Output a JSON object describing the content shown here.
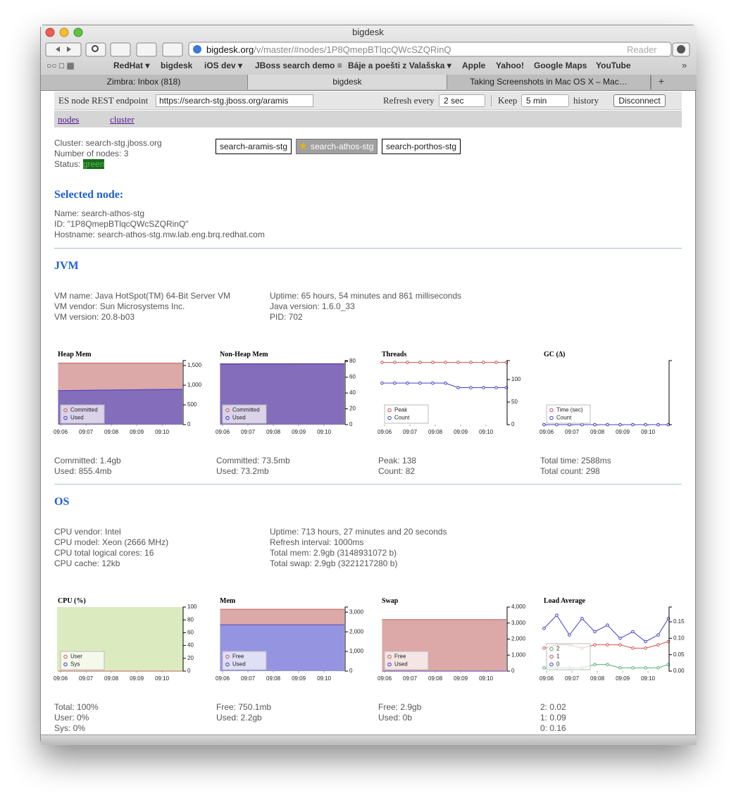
{
  "window": {
    "title": "bigdesk",
    "url_host": "bigdesk.org",
    "url_path": "/v/master/#nodes/1P8QmepBTlqcQWcSZQRinQ",
    "reader": "Reader"
  },
  "bookmarks": [
    "RedHat ▾",
    "bigdesk",
    "iOS dev ▾",
    "JBoss search demo ≡",
    "Báje a poešti z Valašska ▾",
    "Apple",
    "Yahoo!",
    "Google Maps",
    "YouTube"
  ],
  "tabs": [
    "Zimbra: Inbox (818)",
    "bigdesk",
    "Taking Screenshots in Mac OS X – Mac…"
  ],
  "header": {
    "endpoint_label": "ES node REST endpoint",
    "endpoint": "https://search-stg.jboss.org/aramis",
    "refresh_label": "Refresh every",
    "refresh": "2 sec",
    "keep_label": "Keep",
    "keep": "5 min",
    "history_label": "history",
    "disconnect": "Disconnect"
  },
  "nav": [
    "nodes",
    "cluster"
  ],
  "cluster": {
    "name": "Cluster: search-stg.jboss.org",
    "nodes_count": "Number of nodes: 3",
    "status_label": "Status:",
    "status": "green"
  },
  "nodes": [
    "search-aramis-stg",
    "search-athos-stg",
    "search-porthos-stg"
  ],
  "selected_node": {
    "heading": "Selected node:",
    "lines": [
      "Name: search-athos-stg",
      "ID: \"1P8QmepBTlqcQWcSZQRinQ\"",
      "Hostname: search-athos-stg.mw.lab.eng.brq.redhat.com"
    ]
  },
  "jvm": {
    "heading": "JVM",
    "left": [
      "VM name: Java HotSpot(TM) 64-Bit Server VM",
      "VM vendor: Sun Microsystems Inc.",
      "VM version: 20.8-b03"
    ],
    "right": [
      "Uptime: 65 hours, 54 minutes and 861 milliseconds",
      "Java version: 1.6.0_33",
      "PID: 702"
    ]
  },
  "jvm_charts": [
    {
      "type": "area",
      "title": "Heap Mem",
      "stacked": false,
      "x": [
        545.9,
        546.4,
        546.9,
        547.4,
        547.9,
        548.4,
        548.9,
        549.4,
        549.9,
        550.4,
        550.8
      ],
      "xlim": [
        545.86,
        550.83
      ],
      "xticks": [
        {
          "value": 546,
          "label": "09:06"
        },
        {
          "value": 547,
          "label": "09:07"
        },
        {
          "value": 548,
          "label": "09:08"
        },
        {
          "value": 549,
          "label": "09:09"
        },
        {
          "value": 550,
          "label": "09:10"
        }
      ],
      "ylim": [
        0,
        1625
      ],
      "yticks": [
        0,
        500,
        {
          "value": 1000,
          "label": "1,000"
        },
        {
          "value": 1500,
          "label": "1,500"
        }
      ],
      "series": [
        {
          "name": "Committed",
          "color": "#c06060",
          "values": [
            1560,
            1560,
            1560,
            1560,
            1560,
            1560,
            1560,
            1560,
            1560,
            1560,
            1560
          ]
        },
        {
          "name": "Used",
          "color": "#3c3cc8",
          "values": [
            862,
            866,
            870,
            874,
            878,
            882,
            885,
            888,
            891,
            894,
            897
          ]
        }
      ],
      "stats": [
        "Committed: 1.4gb",
        "Used: 855.4mb"
      ]
    },
    {
      "type": "area",
      "title": "Non-Heap Mem",
      "stacked": false,
      "x": [
        545.9,
        546.4,
        546.9,
        547.4,
        547.9,
        548.4,
        548.9,
        549.4,
        549.9,
        550.4,
        550.8
      ],
      "xlim": [
        545.86,
        550.83
      ],
      "xticks": [
        {
          "value": 546,
          "label": "09:06"
        },
        {
          "value": 547,
          "label": "09:07"
        },
        {
          "value": 548,
          "label": "09:08"
        },
        {
          "value": 549,
          "label": "09:09"
        },
        {
          "value": 550,
          "label": "09:10"
        }
      ],
      "ylim": [
        0,
        81
      ],
      "yticks": [
        0,
        20,
        40,
        60,
        80
      ],
      "series": [
        {
          "name": "Committed",
          "color": "#c06060",
          "values": [
            77.1,
            77.1,
            77.1,
            77.1,
            77.1,
            77.1,
            77.1,
            77.1,
            77.1,
            77.1,
            77.1
          ]
        },
        {
          "name": "Used",
          "color": "#3c3cc8",
          "values": [
            76.6,
            76.6,
            76.7,
            76.7,
            76.7,
            76.7,
            76.8,
            76.8,
            76.8,
            76.8,
            76.8
          ]
        }
      ],
      "stats": [
        "Committed: 73.5mb",
        "Used: 73.2mb"
      ]
    },
    {
      "type": "line",
      "title": "Threads",
      "x": [
        545.9,
        546.4,
        546.9,
        547.4,
        547.9,
        548.4,
        548.9,
        549.4,
        549.9,
        550.4,
        550.8
      ],
      "xlim": [
        545.86,
        550.83
      ],
      "xticks": [
        {
          "value": 546,
          "label": "09:06"
        },
        {
          "value": 547,
          "label": "09:07"
        },
        {
          "value": 548,
          "label": "09:08"
        },
        {
          "value": 549,
          "label": "09:09"
        },
        {
          "value": 550,
          "label": "09:10"
        }
      ],
      "ylim": [
        0,
        142
      ],
      "yticks": [
        0,
        50,
        100
      ],
      "series": [
        {
          "name": "Peak",
          "color": "#d05050",
          "values": [
            138,
            138,
            138,
            138,
            138,
            138,
            138,
            138,
            138,
            138,
            138
          ]
        },
        {
          "name": "Count",
          "color": "#4040c0",
          "values": [
            92,
            92,
            92,
            92,
            92,
            92,
            82,
            82,
            82,
            82,
            82
          ]
        }
      ],
      "stats": [
        "Peak: 138",
        "Count: 82"
      ]
    },
    {
      "type": "line",
      "title": "GC (Δ)",
      "x": [
        545.9,
        546.4,
        546.9,
        547.4,
        547.9,
        548.4,
        548.9,
        549.4,
        549.9,
        550.4,
        550.8
      ],
      "xlim": [
        545.86,
        550.83
      ],
      "xticks": [
        {
          "value": 546,
          "label": "09:06"
        },
        {
          "value": 547,
          "label": "09:07"
        },
        {
          "value": 548,
          "label": "09:08"
        },
        {
          "value": 549,
          "label": "09:09"
        },
        {
          "value": 550,
          "label": "09:10"
        }
      ],
      "ylim": [
        0,
        1
      ],
      "yticks": [],
      "series": [
        {
          "name": "Time (sec)",
          "color": "#d05050",
          "values": [
            0,
            0,
            0,
            0,
            0,
            0,
            0,
            0,
            0,
            0,
            0
          ]
        },
        {
          "name": "Count",
          "color": "#4040c0",
          "values": [
            0,
            0,
            0,
            0,
            0,
            0,
            0,
            0,
            0,
            0,
            0
          ]
        }
      ],
      "stats": [
        "Total time: 2588ms",
        "Total count: 298"
      ]
    }
  ],
  "os": {
    "heading": "OS",
    "left": [
      "CPU vendor: Intel",
      "CPU model: Xeon (2666 MHz)",
      "CPU total logical cores: 16",
      "CPU cache: 12kb"
    ],
    "right": [
      "Uptime: 713 hours, 27 minutes and 20 seconds",
      "Refresh interval: 1000ms",
      "Total mem: 2.9gb (3148931072 b)",
      "Total swap: 2.9gb (3221217280 b)"
    ]
  },
  "os_charts": [
    {
      "type": "area",
      "title": "CPU (%)",
      "stacked": true,
      "plot_color": "#dcebbf",
      "x": [
        545.9,
        546.4,
        546.9,
        547.4,
        547.9,
        548.4,
        548.9,
        549.4,
        549.9,
        550.4,
        550.8
      ],
      "xlim": [
        545.86,
        550.83
      ],
      "xticks": [
        {
          "value": 546,
          "label": "09:06"
        },
        {
          "value": 547,
          "label": "09:07"
        },
        {
          "value": 548,
          "label": "09:08"
        },
        {
          "value": 549,
          "label": "09:09"
        },
        {
          "value": 550,
          "label": "09:10"
        }
      ],
      "ylim": [
        0,
        100
      ],
      "yticks": [
        0,
        20,
        40,
        60,
        80,
        100
      ],
      "series": [
        {
          "name": "User",
          "color": "#c06060",
          "values": [
            0,
            0,
            0,
            0,
            0,
            0,
            0,
            0,
            0,
            0,
            0
          ]
        },
        {
          "name": "Sys",
          "color": "#3c3cc8",
          "values": [
            0,
            0,
            0,
            0,
            0,
            0,
            0,
            0,
            0,
            0,
            0
          ]
        }
      ],
      "stats": [
        "Total: 100%",
        "User: 0%",
        "Sys: 0%"
      ]
    },
    {
      "type": "area",
      "title": "Mem",
      "stacked": true,
      "x": [
        545.9,
        546.4,
        546.9,
        547.4,
        547.9,
        548.4,
        548.9,
        549.4,
        549.9,
        550.4,
        550.8
      ],
      "xlim": [
        545.86,
        550.83
      ],
      "xticks": [
        {
          "value": 546,
          "label": "09:06"
        },
        {
          "value": 547,
          "label": "09:07"
        },
        {
          "value": 548,
          "label": "09:08"
        },
        {
          "value": 549,
          "label": "09:09"
        },
        {
          "value": 550,
          "label": "09:10"
        }
      ],
      "ylim": [
        0,
        3260
      ],
      "yticks": [
        0,
        {
          "value": 1000,
          "label": "1,000"
        },
        {
          "value": 2000,
          "label": "2,000"
        },
        {
          "value": 3000,
          "label": "3,000"
        }
      ],
      "series": [
        {
          "name": "Free",
          "color": "#c06060",
          "values": [
            786,
            786,
            786,
            786,
            786,
            786,
            786,
            786,
            786,
            786,
            786
          ]
        },
        {
          "name": "Used",
          "color": "#3c3cc8",
          "values": [
            2362,
            2362,
            2362,
            2362,
            2362,
            2362,
            2362,
            2362,
            2362,
            2362,
            2362
          ]
        }
      ],
      "stats": [
        "Free: 750.1mb",
        "Used: 2.2gb"
      ]
    },
    {
      "type": "area",
      "title": "Swap",
      "stacked": true,
      "x": [
        545.9,
        546.4,
        546.9,
        547.4,
        547.9,
        548.4,
        548.9,
        549.4,
        549.9,
        550.4,
        550.8
      ],
      "xlim": [
        545.86,
        550.83
      ],
      "xticks": [
        {
          "value": 546,
          "label": "09:06"
        },
        {
          "value": 547,
          "label": "09:07"
        },
        {
          "value": 548,
          "label": "09:08"
        },
        {
          "value": 549,
          "label": "09:09"
        },
        {
          "value": 550,
          "label": "09:10"
        }
      ],
      "ylim": [
        0,
        4000
      ],
      "yticks": [
        0,
        {
          "value": 1000,
          "label": "1,000"
        },
        {
          "value": 2000,
          "label": "2,000"
        },
        {
          "value": 3000,
          "label": "3,000"
        },
        {
          "value": 4000,
          "label": "4,000"
        }
      ],
      "series": [
        {
          "name": "Free",
          "color": "#c06060",
          "values": [
            3221,
            3221,
            3221,
            3221,
            3221,
            3221,
            3221,
            3221,
            3221,
            3221,
            3221
          ]
        },
        {
          "name": "Used",
          "color": "#3c3cc8",
          "values": [
            0,
            0,
            0,
            0,
            0,
            0,
            0,
            0,
            0,
            0,
            0
          ]
        }
      ],
      "stats": [
        "Free: 2.9gb",
        "Used: 0b"
      ]
    },
    {
      "type": "line",
      "title": "Load Average",
      "x": [
        545.9,
        546.4,
        546.9,
        547.4,
        547.9,
        548.4,
        548.9,
        549.4,
        549.9,
        550.4,
        550.8
      ],
      "xlim": [
        545.86,
        550.83
      ],
      "xticks": [
        {
          "value": 546,
          "label": "09:06"
        },
        {
          "value": 547,
          "label": "09:07"
        },
        {
          "value": 548,
          "label": "09:08"
        },
        {
          "value": 549,
          "label": "09:09"
        },
        {
          "value": 550,
          "label": "09:10"
        }
      ],
      "ylim": [
        0,
        0.195
      ],
      "yticks": [
        {
          "value": 0,
          "label": "0.00"
        },
        0.05,
        {
          "value": 0.1,
          "label": "0.10"
        },
        0.15
      ],
      "series": [
        {
          "name": "2",
          "color": "#50b070",
          "values": [
            0.01,
            0.01,
            0.01,
            0.01,
            0.02,
            0.02,
            0.01,
            0.01,
            0.01,
            0.01,
            0.02
          ]
        },
        {
          "name": "1",
          "color": "#d05050",
          "values": [
            0.07,
            0.08,
            0.08,
            0.07,
            0.08,
            0.08,
            0.08,
            0.07,
            0.07,
            0.08,
            0.09
          ]
        },
        {
          "name": "0",
          "color": "#4040c0",
          "values": [
            0.13,
            0.17,
            0.11,
            0.16,
            0.12,
            0.14,
            0.1,
            0.12,
            0.09,
            0.11,
            0.16
          ]
        }
      ],
      "stats": [
        "2: 0.02",
        "1: 0.09",
        "0: 0.16"
      ]
    }
  ]
}
